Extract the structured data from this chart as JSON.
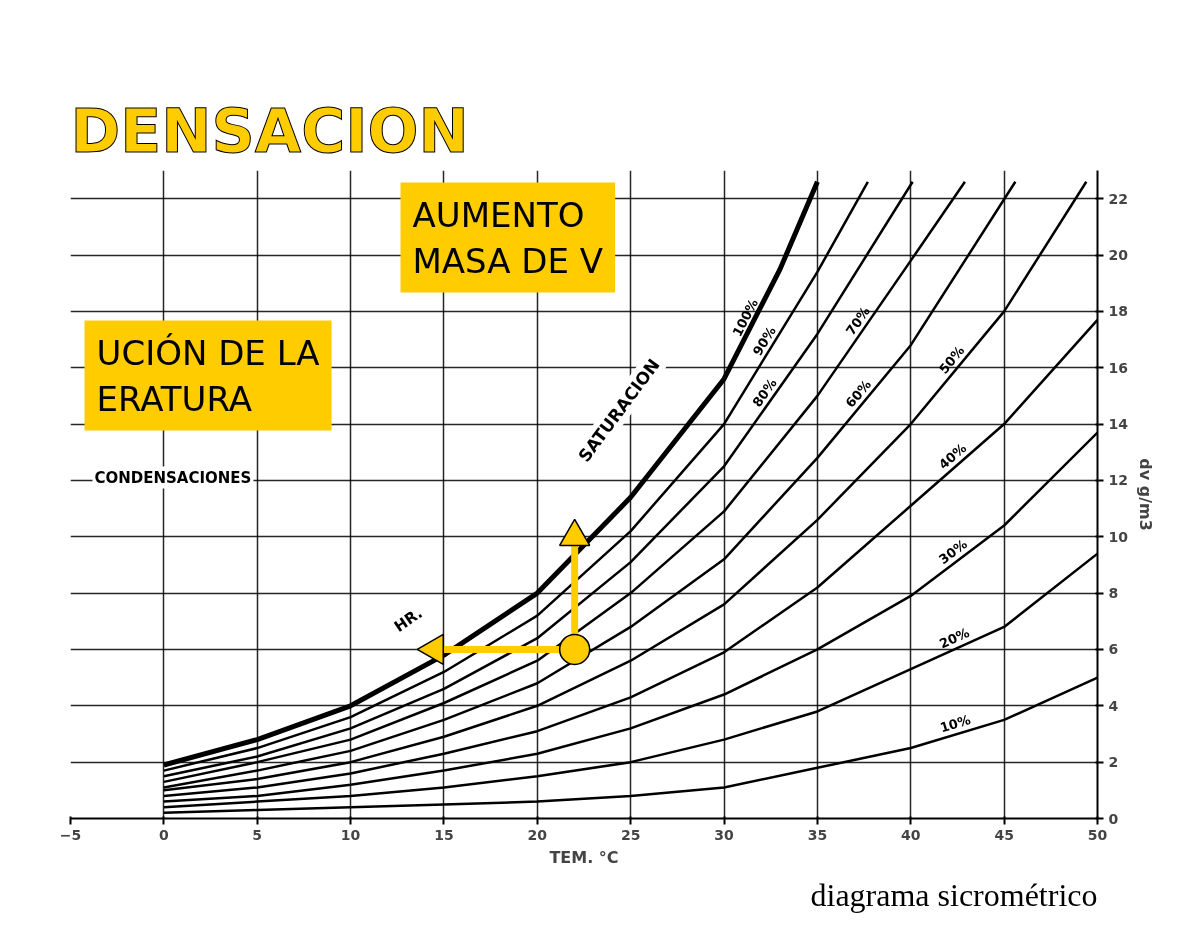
{
  "chart_data": {
    "type": "line",
    "title": "DENSACION",
    "xlabel": "TEM. °C",
    "ylabel": "dv g/m3",
    "xlim": [
      -5,
      50
    ],
    "ylim": [
      0,
      23
    ],
    "xticks": [
      -5,
      0,
      5,
      10,
      15,
      20,
      25,
      30,
      35,
      40,
      45,
      50
    ],
    "yticks": [
      0,
      2,
      4,
      6,
      8,
      10,
      12,
      14,
      16,
      18,
      20,
      22
    ],
    "grid": true,
    "annotations": [
      "SATURACION",
      "HR.",
      "CONDENSACIONES",
      "AUMENTO MASA DE V",
      "UCIÓN DE LA ERATURA",
      "diagrama sicrométrico"
    ],
    "series": [
      {
        "name": "100%",
        "color": "#000000",
        "x": [
          0,
          5,
          10,
          15,
          20,
          25,
          30,
          33,
          35
        ],
        "values": [
          1.9,
          2.8,
          4.0,
          5.8,
          8.0,
          11.4,
          15.6,
          19.5,
          22.6
        ]
      },
      {
        "name": "90%",
        "color": "#000000",
        "x": [
          0,
          5,
          10,
          15,
          20,
          25,
          30,
          35,
          37.7
        ],
        "values": [
          1.7,
          2.5,
          3.6,
          5.2,
          7.2,
          10.2,
          14.0,
          19.4,
          22.6
        ]
      },
      {
        "name": "80%",
        "color": "#000000",
        "x": [
          0,
          5,
          10,
          15,
          20,
          25,
          30,
          35,
          40.1
        ],
        "values": [
          1.5,
          2.2,
          3.2,
          4.6,
          6.4,
          9.1,
          12.5,
          17.2,
          22.6
        ]
      },
      {
        "name": "70%",
        "color": "#000000",
        "x": [
          0,
          5,
          10,
          15,
          20,
          25,
          30,
          35,
          40,
          42.9
        ],
        "values": [
          1.3,
          2.0,
          2.8,
          4.1,
          5.6,
          8.0,
          10.9,
          15.0,
          19.8,
          22.6
        ]
      },
      {
        "name": "60%",
        "color": "#000000",
        "x": [
          0,
          5,
          10,
          15,
          20,
          25,
          30,
          35,
          40,
          45.6
        ],
        "values": [
          1.1,
          1.7,
          2.4,
          3.5,
          4.8,
          6.8,
          9.2,
          12.8,
          16.8,
          22.6
        ]
      },
      {
        "name": "50%",
        "color": "#000000",
        "x": [
          0,
          5,
          10,
          15,
          20,
          25,
          30,
          35,
          40,
          45,
          49.4
        ],
        "values": [
          1.0,
          1.4,
          2.0,
          2.9,
          4.0,
          5.6,
          7.6,
          10.6,
          14.0,
          18.0,
          22.6
        ]
      },
      {
        "name": "40%",
        "color": "#000000",
        "x": [
          0,
          5,
          10,
          15,
          20,
          25,
          30,
          35,
          40,
          45,
          50
        ],
        "values": [
          0.8,
          1.1,
          1.6,
          2.3,
          3.1,
          4.3,
          5.9,
          8.2,
          11.1,
          14.0,
          17.7
        ]
      },
      {
        "name": "30%",
        "color": "#000000",
        "x": [
          0,
          5,
          10,
          15,
          20,
          25,
          30,
          35,
          40,
          45,
          50
        ],
        "values": [
          0.6,
          0.8,
          1.2,
          1.7,
          2.3,
          3.2,
          4.4,
          6.0,
          7.9,
          10.4,
          13.7
        ]
      },
      {
        "name": "20%",
        "color": "#000000",
        "x": [
          0,
          5,
          10,
          15,
          20,
          25,
          30,
          35,
          40,
          45,
          50
        ],
        "values": [
          0.4,
          0.6,
          0.8,
          1.1,
          1.5,
          2.0,
          2.8,
          3.8,
          5.3,
          6.8,
          9.4
        ]
      },
      {
        "name": "10%",
        "color": "#000000",
        "x": [
          0,
          5,
          10,
          15,
          20,
          25,
          30,
          35,
          40,
          45,
          50
        ],
        "values": [
          0.2,
          0.3,
          0.4,
          0.5,
          0.6,
          0.8,
          1.1,
          1.8,
          2.5,
          3.5,
          5.0
        ]
      },
      {
        "type": "line",
        "color": "#ffcc00",
        "marker": "triangle",
        "x": [
          22,
          22
        ],
        "values": [
          6,
          10
        ]
      },
      {
        "type": "line",
        "color": "#ffcc00",
        "marker": "triangle",
        "x": [
          22,
          14.5
        ],
        "values": [
          6,
          6
        ]
      },
      {
        "type": "scatter",
        "color": "#ffcc00",
        "marker": "circle",
        "x": [
          22
        ],
        "values": [
          6
        ]
      }
    ]
  }
}
